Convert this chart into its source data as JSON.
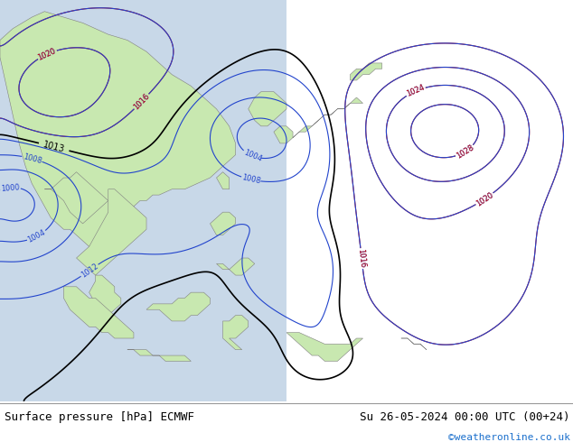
{
  "title_left": "Surface pressure [hPa] ECMWF",
  "title_right": "Su 26-05-2024 00:00 UTC (00+24)",
  "credit": "©weatheronline.co.uk",
  "ocean_left_color": "#c8d8e8",
  "ocean_right_color": "#e8e8e8",
  "land_color": "#c8e8b0",
  "land_color2": "#b8d8a0",
  "coast_color": "#808080",
  "fig_width": 6.34,
  "fig_height": 4.9,
  "dpi": 100,
  "bottom_bar_color": "#f0f0f0",
  "title_fontsize": 9.0,
  "credit_fontsize": 8,
  "credit_color": "#1a6fcc",
  "blue_contour_color": "#2244cc",
  "black_contour_color": "#000000",
  "red_contour_color": "#cc1111"
}
